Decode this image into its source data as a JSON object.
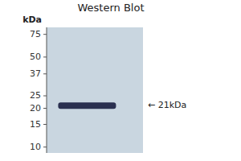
{
  "chart_data": {
    "type": "blot",
    "title": "Western Blot",
    "ylabel": "kDa",
    "log": "y",
    "ylim": [
      9,
      85
    ],
    "yticks": [
      10,
      15,
      20,
      25,
      37,
      50,
      75
    ],
    "values": [
      21
    ],
    "color": "#2a3050",
    "annotation": "← 21kDa"
  }
}
